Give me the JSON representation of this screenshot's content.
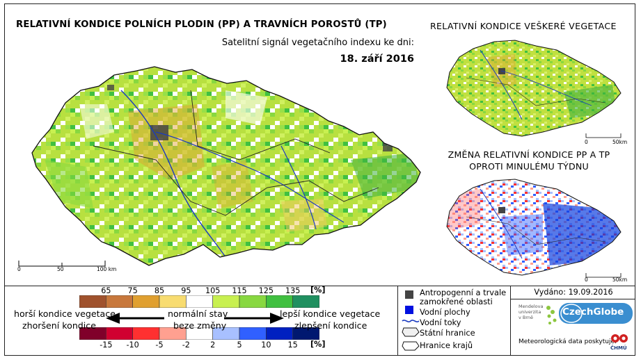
{
  "titles": {
    "main": "RELATIVNÍ KONDICE POLNÍCH PLODIN (PP) A TRAVNÍCH POROSTŮ (TP)",
    "subtitle": "Satelitní signál vegetačního indexu ke dni:",
    "date": "18. září 2016",
    "right_top": "RELATIVNÍ KONDICE VEŠKERÉ VEGETACE",
    "right_bottom_1": "ZMĚNA RELATIVNÍ KONDICE PP A TP",
    "right_bottom_2": "OPROTI MINULÉMU TÝDNU"
  },
  "scalebar_main": {
    "l0": "0",
    "l1": "50",
    "l2": "100 km"
  },
  "scalebar_small_top": {
    "l0": "0",
    "l1": "50km"
  },
  "scalebar_small_bottom": {
    "l0": "0",
    "l1": "50km"
  },
  "condition_scale": {
    "labels": [
      "65",
      "75",
      "85",
      "95",
      "105",
      "115",
      "125",
      "135"
    ],
    "unit": "[%]",
    "colors": [
      "#a0522d",
      "#c8783c",
      "#e0a030",
      "#f8dc70",
      "#ffffff",
      "#c8f050",
      "#88d840",
      "#40c040",
      "#209060"
    ]
  },
  "change_scale": {
    "labels": [
      "-15",
      "-10",
      "-5",
      "-2",
      "2",
      "5",
      "10",
      "15"
    ],
    "unit": "[%]",
    "colors": [
      "#80002a",
      "#d00030",
      "#ff3030",
      "#ffa090",
      "#ffffff",
      "#a8c0ff",
      "#3060ff",
      "#0020c0",
      "#001870"
    ]
  },
  "scale_text": {
    "left_top": "horší kondice vegetace",
    "left_bottom": "zhoršení kondice",
    "mid_top": "normální stav",
    "mid_bottom": "beze změny",
    "right_top": "lepší kondice vegetace",
    "right_bottom": "zlepšení kondice"
  },
  "legend": {
    "anthropogenic_1": "Antropogenní a trvale",
    "anthropogenic_2": "zamokřené oblasti",
    "water": "Vodní plochy",
    "rivers": "Vodní toky",
    "border": "Státní hranice",
    "regions": "Hranice krajů"
  },
  "info": {
    "issued": "Vydáno: 19.09.2016",
    "provider": "Meteorologická data poskytuje:",
    "mendel_1": "Mendelova",
    "mendel_2": "univerzita",
    "mendel_3": "v Brně",
    "czechglobe": "CzechGlobe",
    "chmu": "ČHMÚ"
  }
}
